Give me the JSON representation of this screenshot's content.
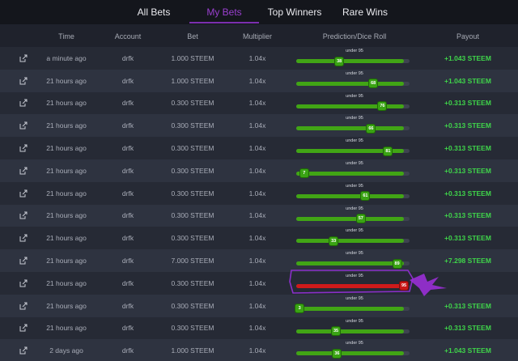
{
  "tabs": [
    {
      "label": "All Bets",
      "active": false
    },
    {
      "label": "My Bets",
      "active": true
    },
    {
      "label": "Top Winners",
      "active": false
    },
    {
      "label": "Rare Wins",
      "active": false
    }
  ],
  "columns": [
    "Time",
    "Account",
    "Bet",
    "Multiplier",
    "Prediction/Dice Roll",
    "Payout"
  ],
  "colors": {
    "win": "#3fd54a",
    "bar_win": "#41a515",
    "bar_loss": "#cf1a1a",
    "accent": "#9a3fcf"
  },
  "rows": [
    {
      "time": "a minute ago",
      "account": "drfk",
      "bet": "1.000 STEEM",
      "multiplier": "1.04x",
      "prediction": "under 95",
      "roll": "38",
      "payout": "+1.043 STEEM",
      "result": "win"
    },
    {
      "time": "21 hours ago",
      "account": "drfk",
      "bet": "1.000 STEEM",
      "multiplier": "1.04x",
      "prediction": "under 95",
      "roll": "68",
      "payout": "+1.043 STEEM",
      "result": "win"
    },
    {
      "time": "21 hours ago",
      "account": "drfk",
      "bet": "0.300 STEEM",
      "multiplier": "1.04x",
      "prediction": "under 95",
      "roll": "76",
      "payout": "+0.313 STEEM",
      "result": "win"
    },
    {
      "time": "21 hours ago",
      "account": "drfk",
      "bet": "0.300 STEEM",
      "multiplier": "1.04x",
      "prediction": "under 95",
      "roll": "66",
      "payout": "+0.313 STEEM",
      "result": "win"
    },
    {
      "time": "21 hours ago",
      "account": "drfk",
      "bet": "0.300 STEEM",
      "multiplier": "1.04x",
      "prediction": "under 95",
      "roll": "81",
      "payout": "+0.313 STEEM",
      "result": "win"
    },
    {
      "time": "21 hours ago",
      "account": "drfk",
      "bet": "0.300 STEEM",
      "multiplier": "1.04x",
      "prediction": "under 95",
      "roll": "7",
      "payout": "+0.313 STEEM",
      "result": "win"
    },
    {
      "time": "21 hours ago",
      "account": "drfk",
      "bet": "0.300 STEEM",
      "multiplier": "1.04x",
      "prediction": "under 95",
      "roll": "61",
      "payout": "+0.313 STEEM",
      "result": "win"
    },
    {
      "time": "21 hours ago",
      "account": "drfk",
      "bet": "0.300 STEEM",
      "multiplier": "1.04x",
      "prediction": "under 95",
      "roll": "57",
      "payout": "+0.313 STEEM",
      "result": "win"
    },
    {
      "time": "21 hours ago",
      "account": "drfk",
      "bet": "0.300 STEEM",
      "multiplier": "1.04x",
      "prediction": "under 95",
      "roll": "33",
      "payout": "+0.313 STEEM",
      "result": "win"
    },
    {
      "time": "21 hours ago",
      "account": "drfk",
      "bet": "7.000 STEEM",
      "multiplier": "1.04x",
      "prediction": "under 95",
      "roll": "89",
      "payout": "+7.298 STEEM",
      "result": "win"
    },
    {
      "time": "21 hours ago",
      "account": "drfk",
      "bet": "0.300 STEEM",
      "multiplier": "1.04x",
      "prediction": "under 95",
      "roll": "95",
      "payout": "",
      "result": "loss"
    },
    {
      "time": "21 hours ago",
      "account": "drfk",
      "bet": "0.300 STEEM",
      "multiplier": "1.04x",
      "prediction": "under 95",
      "roll": "3",
      "payout": "+0.313 STEEM",
      "result": "win"
    },
    {
      "time": "21 hours ago",
      "account": "drfk",
      "bet": "0.300 STEEM",
      "multiplier": "1.04x",
      "prediction": "under 95",
      "roll": "35",
      "payout": "+0.313 STEEM",
      "result": "win"
    },
    {
      "time": "2 days ago",
      "account": "drfk",
      "bet": "1.000 STEEM",
      "multiplier": "1.04x",
      "prediction": "under 95",
      "roll": "36",
      "payout": "+1.043 STEEM",
      "result": "win"
    }
  ]
}
